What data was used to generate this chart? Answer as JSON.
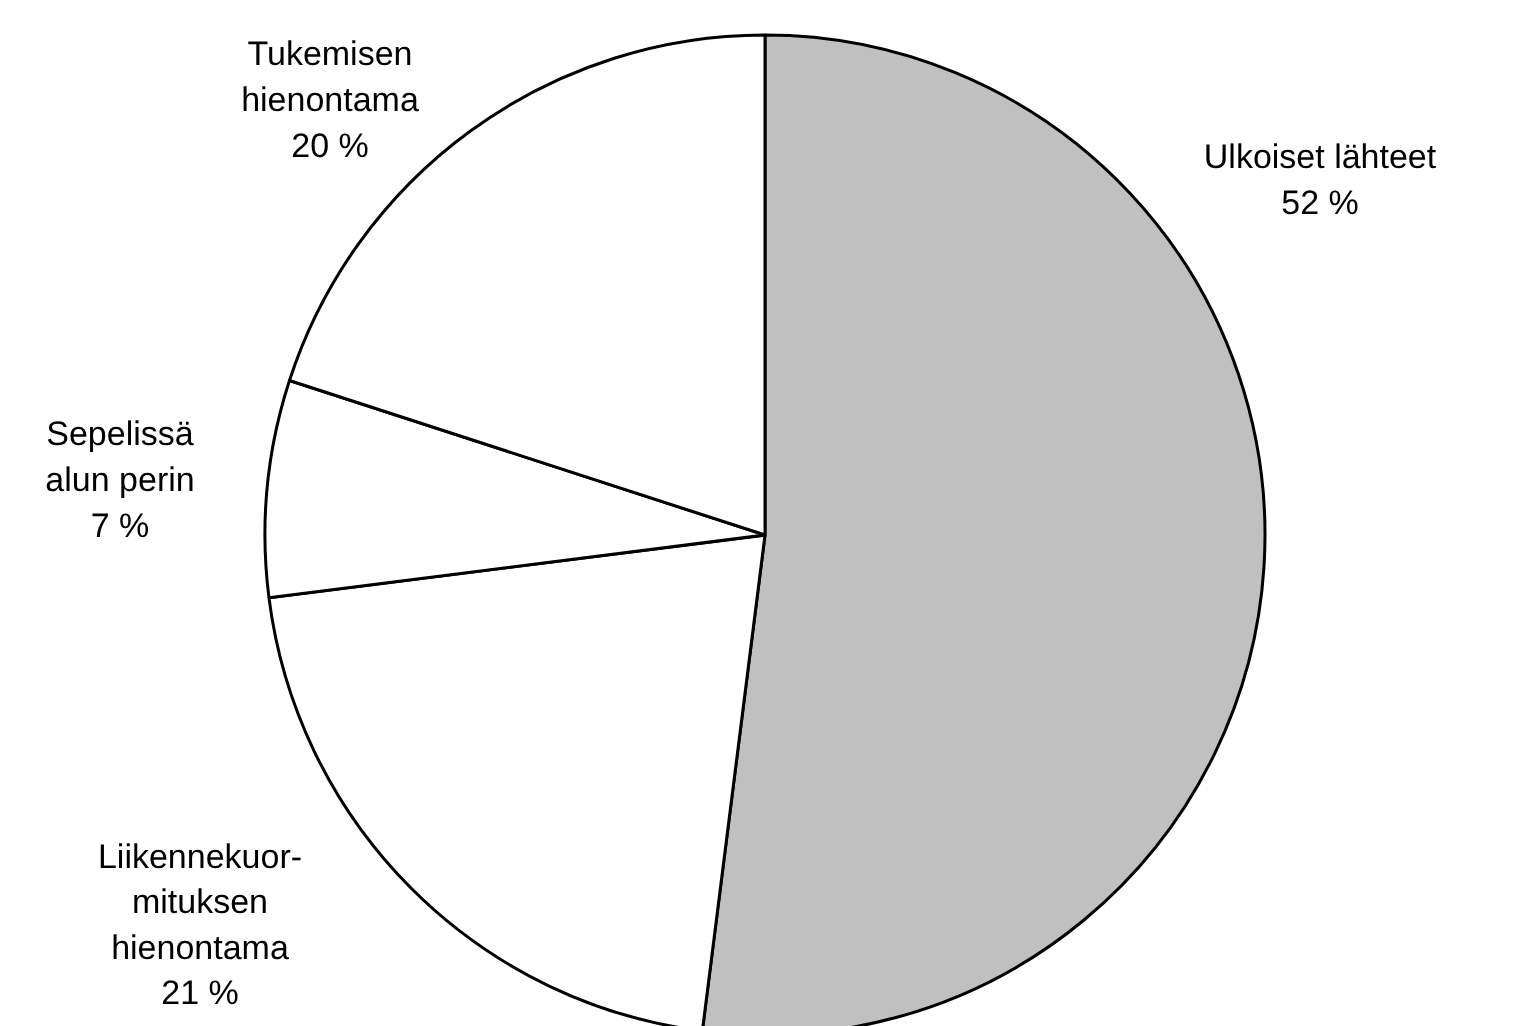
{
  "chart_data": {
    "type": "pie",
    "categories": [
      "Ulkoiset lähteet",
      "Liikennekuor-\nmituksen\nhienontama",
      "Sepelissä\nalun perin",
      "Tukemisen\nhienontama"
    ],
    "values": [
      52,
      21,
      7,
      20
    ],
    "value_labels": [
      "52 %",
      "21 %",
      "7 %",
      "20 %"
    ],
    "colors": [
      "#c0c0c0",
      "#ffffff",
      "#ffffff",
      "#ffffff"
    ]
  }
}
